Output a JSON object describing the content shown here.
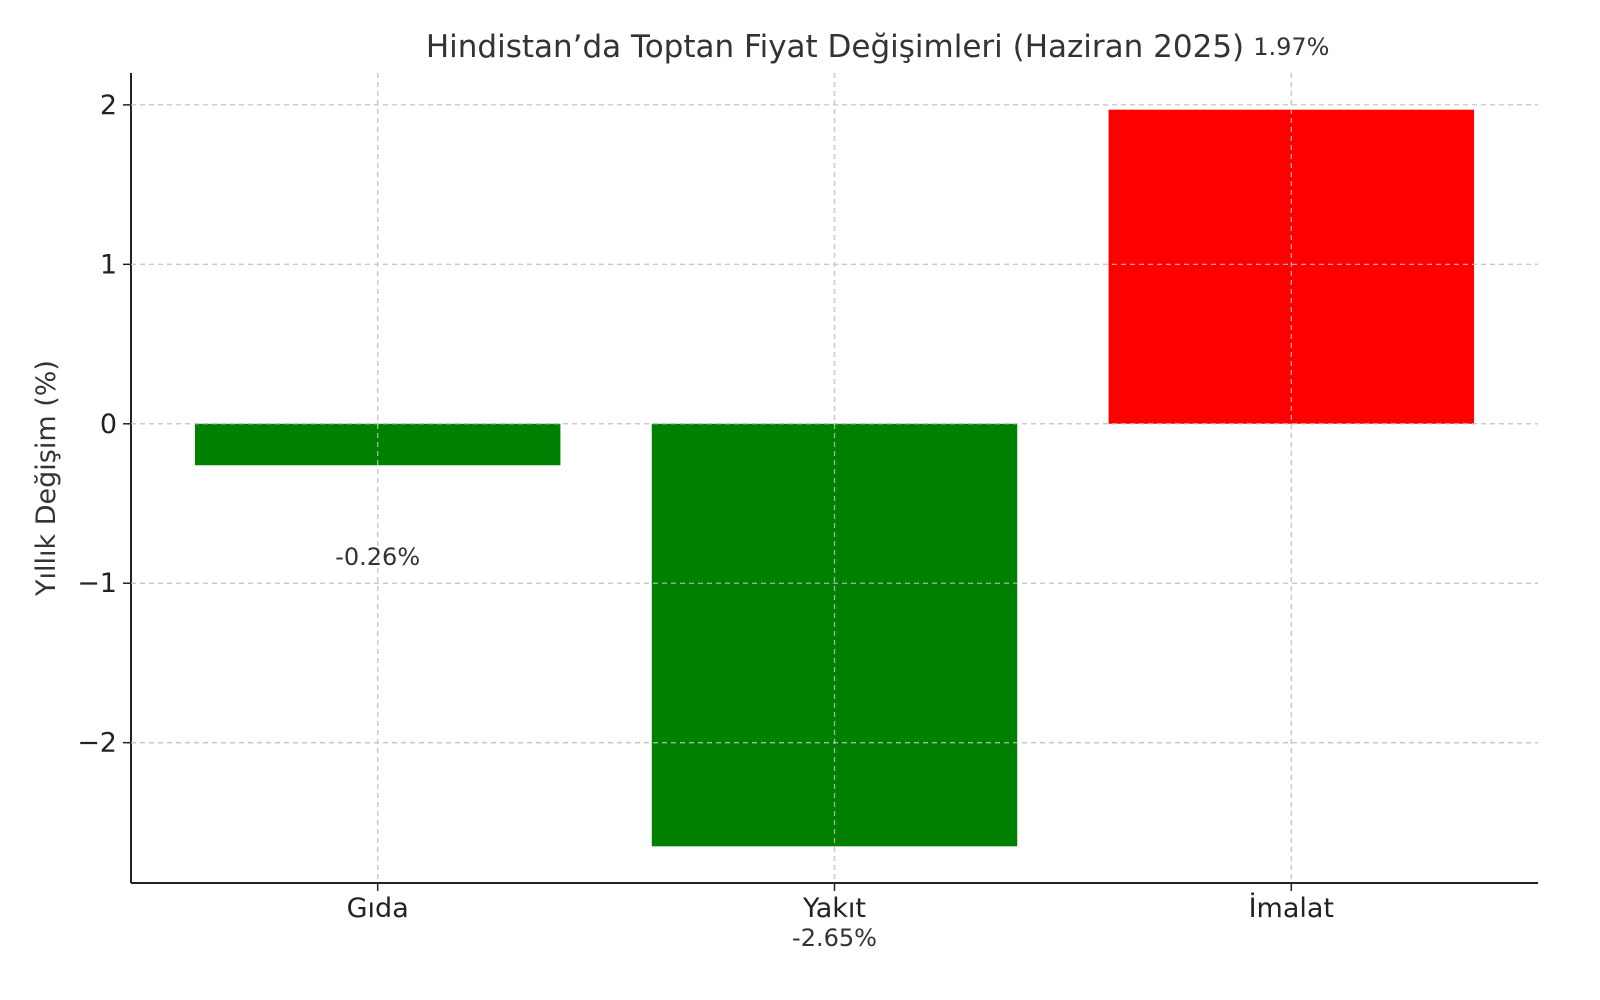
{
  "chart_data": {
    "type": "bar",
    "title": "Hindistan’da Toptan Fiyat Değişimleri (Haziran 2025)",
    "xlabel": "",
    "ylabel": "Yıllık Değişim (%)",
    "categories": [
      "Gıda",
      "Yakıt",
      "İmalat"
    ],
    "values": [
      -0.26,
      -2.65,
      1.97
    ],
    "data_labels": [
      "-0.26%",
      "-2.65%",
      "1.97%"
    ],
    "colors": [
      "#008000",
      "#008000",
      "#ff0000"
    ],
    "ylim": [
      -2.88,
      2.2
    ],
    "yticks": [
      -2,
      -1,
      0,
      1,
      2
    ],
    "ytick_labels": [
      "−2",
      "−1",
      "0",
      "1",
      "2"
    ],
    "grid": true
  }
}
